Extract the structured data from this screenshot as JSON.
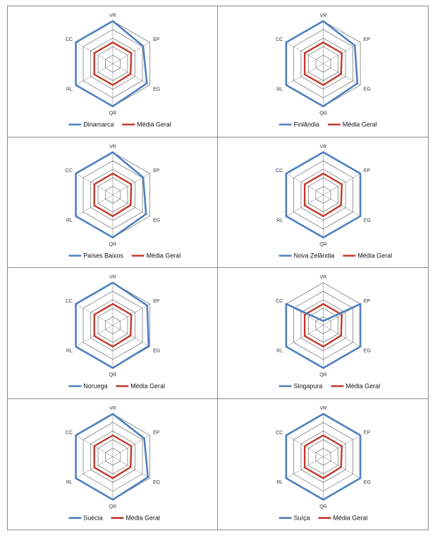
{
  "axes": [
    "VR",
    "EP",
    "EG",
    "QR",
    "RL",
    "CC"
  ],
  "series_colors": {
    "country": "#4f7fbf",
    "average": "#c0392b"
  },
  "average_label": "Média Geral",
  "chart_data": [
    {
      "type": "radar",
      "title": "",
      "axes": [
        "VR",
        "EP",
        "EG",
        "QR",
        "RL",
        "CC"
      ],
      "rmax": 1.0,
      "rings": 5,
      "series": [
        {
          "name": "Dinamarca",
          "values": [
            1.0,
            0.82,
            0.92,
            1.0,
            1.0,
            1.0
          ]
        },
        {
          "name": "Média Geral",
          "values": [
            0.5,
            0.5,
            0.48,
            0.5,
            0.5,
            0.5
          ]
        }
      ]
    },
    {
      "type": "radar",
      "title": "",
      "axes": [
        "VR",
        "EP",
        "EG",
        "QR",
        "RL",
        "CC"
      ],
      "rmax": 1.0,
      "rings": 5,
      "series": [
        {
          "name": "Finlândia",
          "values": [
            1.0,
            0.85,
            0.92,
            1.0,
            1.0,
            1.0
          ]
        },
        {
          "name": "Média Geral",
          "values": [
            0.5,
            0.5,
            0.48,
            0.5,
            0.5,
            0.5
          ]
        }
      ]
    },
    {
      "type": "radar",
      "title": "",
      "axes": [
        "VR",
        "EP",
        "EG",
        "QR",
        "RL",
        "CC"
      ],
      "rmax": 1.0,
      "rings": 5,
      "series": [
        {
          "name": "Países Baixos",
          "values": [
            1.0,
            0.82,
            0.9,
            1.0,
            1.0,
            1.0
          ]
        },
        {
          "name": "Média Geral",
          "values": [
            0.5,
            0.5,
            0.48,
            0.5,
            0.5,
            0.5
          ]
        }
      ]
    },
    {
      "type": "radar",
      "title": "",
      "axes": [
        "VR",
        "EP",
        "EG",
        "QR",
        "RL",
        "CC"
      ],
      "rmax": 1.0,
      "rings": 5,
      "series": [
        {
          "name": "Nova Zelândia",
          "values": [
            1.0,
            1.0,
            1.0,
            1.0,
            1.0,
            1.0
          ]
        },
        {
          "name": "Média Geral",
          "values": [
            0.5,
            0.5,
            0.48,
            0.5,
            0.5,
            0.5
          ]
        }
      ]
    },
    {
      "type": "radar",
      "title": "",
      "axes": [
        "VR",
        "EP",
        "EG",
        "QR",
        "RL",
        "CC"
      ],
      "rmax": 1.0,
      "rings": 5,
      "series": [
        {
          "name": "Noruega",
          "values": [
            1.0,
            0.93,
            0.97,
            1.0,
            1.0,
            1.0
          ]
        },
        {
          "name": "Média Geral",
          "values": [
            0.5,
            0.5,
            0.48,
            0.5,
            0.5,
            0.5
          ]
        }
      ]
    },
    {
      "type": "radar",
      "title": "",
      "axes": [
        "VR",
        "EP",
        "EG",
        "QR",
        "RL",
        "CC"
      ],
      "rmax": 1.0,
      "rings": 5,
      "series": [
        {
          "name": "Singapura",
          "values": [
            0.1,
            1.0,
            1.0,
            1.0,
            1.0,
            1.0
          ]
        },
        {
          "name": "Média Geral",
          "values": [
            0.5,
            0.5,
            0.48,
            0.5,
            0.5,
            0.5
          ]
        }
      ]
    },
    {
      "type": "radar",
      "title": "",
      "axes": [
        "VR",
        "EP",
        "EG",
        "QR",
        "RL",
        "CC"
      ],
      "rmax": 1.0,
      "rings": 5,
      "series": [
        {
          "name": "Suécia",
          "values": [
            1.0,
            0.85,
            0.95,
            1.0,
            1.0,
            1.0
          ]
        },
        {
          "name": "Média Geral",
          "values": [
            0.5,
            0.5,
            0.48,
            0.5,
            0.5,
            0.5
          ]
        }
      ]
    },
    {
      "type": "radar",
      "title": "",
      "axes": [
        "VR",
        "EP",
        "EG",
        "QR",
        "RL",
        "CC"
      ],
      "rmax": 1.0,
      "rings": 5,
      "series": [
        {
          "name": "Suíça",
          "values": [
            1.0,
            1.0,
            1.0,
            1.0,
            1.0,
            1.0
          ]
        },
        {
          "name": "Média Geral",
          "values": [
            0.5,
            0.5,
            0.48,
            0.5,
            0.5,
            0.5
          ]
        }
      ]
    }
  ]
}
